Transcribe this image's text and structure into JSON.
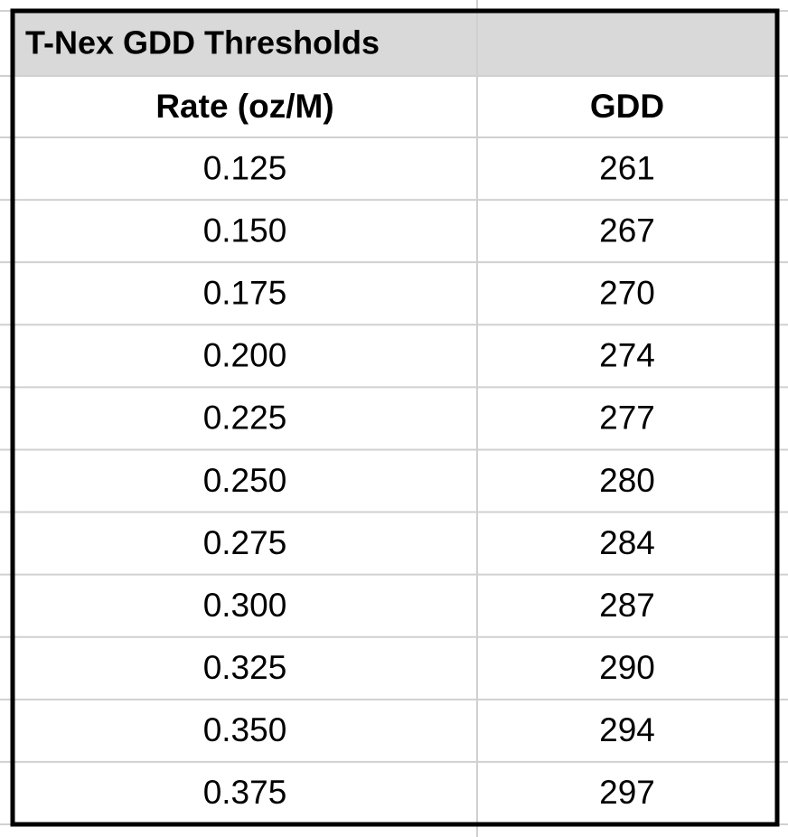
{
  "table": {
    "title": "T-Nex GDD Thresholds",
    "headers": [
      "Rate (oz/M)",
      "GDD"
    ],
    "rows": [
      [
        "0.125",
        261
      ],
      [
        "0.150",
        267
      ],
      [
        "0.175",
        270
      ],
      [
        "0.200",
        274
      ],
      [
        "0.225",
        277
      ],
      [
        "0.250",
        280
      ],
      [
        "0.275",
        284
      ],
      [
        "0.300",
        287
      ],
      [
        "0.325",
        290
      ],
      [
        "0.350",
        294
      ],
      [
        "0.375",
        297
      ]
    ]
  }
}
